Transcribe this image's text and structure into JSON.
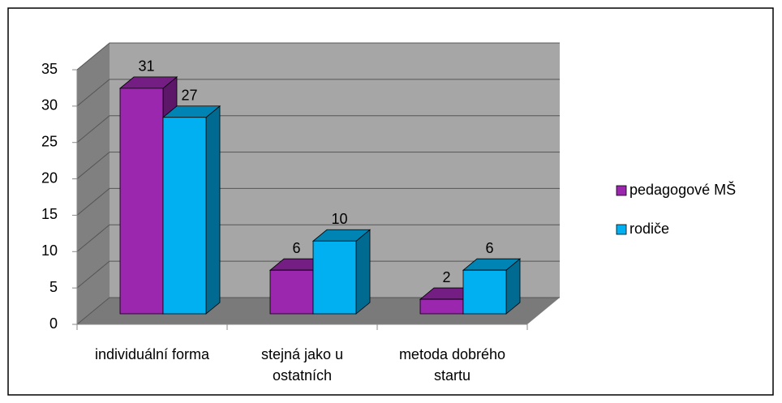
{
  "chart_data": {
    "type": "bar3d",
    "categories": [
      "individuální forma",
      "stejná jako u ostatních",
      "metoda dobrého startu"
    ],
    "series": [
      {
        "name": "pedagogové MŠ",
        "color": "#9b27af",
        "values": [
          31,
          6,
          2
        ]
      },
      {
        "name": "rodiče",
        "color": "#00b0f0",
        "values": [
          27,
          10,
          6
        ]
      }
    ],
    "ylim": [
      0,
      35
    ],
    "yticks": [
      0,
      5,
      10,
      15,
      20,
      25,
      30,
      35
    ],
    "grid": true,
    "legend": "right"
  }
}
